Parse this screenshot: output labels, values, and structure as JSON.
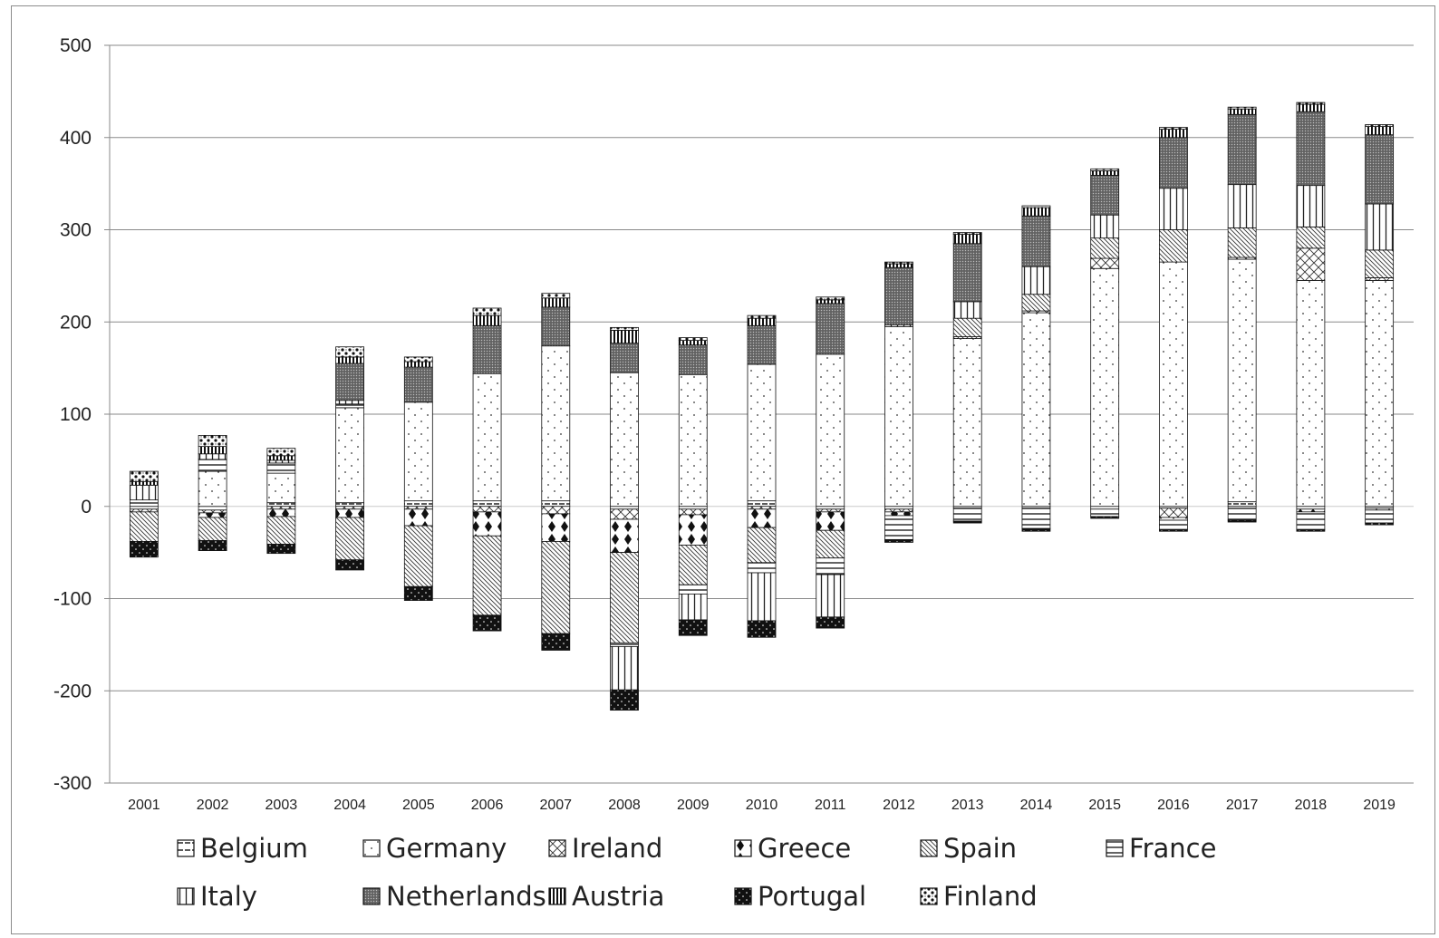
{
  "chart_data": {
    "type": "bar",
    "stacked": true,
    "title": "",
    "xlabel": "",
    "ylabel": "",
    "ylim": [
      -300,
      500
    ],
    "yticks": [
      500,
      400,
      300,
      200,
      100,
      0,
      -100,
      -200,
      -300
    ],
    "grid": true,
    "legend_position": "bottom",
    "categories": [
      "2001",
      "2002",
      "2003",
      "2004",
      "2005",
      "2006",
      "2007",
      "2008",
      "2009",
      "2010",
      "2011",
      "2012",
      "2013",
      "2014",
      "2015",
      "2016",
      "2017",
      "2018",
      "2019"
    ],
    "series": [
      {
        "name": "Belgium",
        "pattern": "belgium",
        "values": [
          -3,
          -4,
          4,
          4,
          6,
          6,
          6,
          -3,
          -3,
          6,
          -3,
          -3,
          -2,
          -2,
          -3,
          -2,
          5,
          -3,
          -2
        ]
      },
      {
        "name": "Germany",
        "pattern": "germany",
        "values": [
          0,
          38,
          32,
          103,
          107,
          138,
          168,
          145,
          143,
          148,
          165,
          195,
          182,
          210,
          258,
          265,
          263,
          245,
          245
        ]
      },
      {
        "name": "Ireland",
        "pattern": "ireland",
        "values": [
          -3,
          -3,
          -3,
          -3,
          -3,
          -6,
          -8,
          -11,
          -6,
          -3,
          -3,
          -3,
          2,
          2,
          11,
          -10,
          2,
          35,
          3
        ]
      },
      {
        "name": "Greece",
        "pattern": "greece",
        "values": [
          0,
          -5,
          -8,
          -9,
          -18,
          -26,
          -30,
          -36,
          -33,
          -20,
          -20,
          -4,
          0,
          0,
          0,
          -3,
          0,
          -3,
          -2
        ]
      },
      {
        "name": "Spain",
        "pattern": "spain",
        "values": [
          -32,
          -25,
          -30,
          -46,
          -66,
          -86,
          -100,
          -98,
          -43,
          -38,
          -30,
          0,
          20,
          18,
          22,
          35,
          32,
          23,
          30
        ]
      },
      {
        "name": "France",
        "pattern": "france",
        "values": [
          7,
          13,
          11,
          4,
          0,
          0,
          0,
          -4,
          -10,
          -11,
          -18,
          -26,
          -14,
          -22,
          -8,
          -10,
          -15,
          -19,
          -14
        ]
      },
      {
        "name": "Italy",
        "pattern": "italy",
        "values": [
          16,
          6,
          3,
          4,
          0,
          0,
          0,
          -47,
          -28,
          -52,
          -46,
          2,
          18,
          30,
          25,
          45,
          47,
          45,
          50
        ]
      },
      {
        "name": "Netherlands",
        "pattern": "netherlands",
        "values": [
          0,
          0,
          0,
          40,
          38,
          52,
          42,
          32,
          32,
          42,
          55,
          62,
          63,
          55,
          43,
          55,
          76,
          80,
          75
        ]
      },
      {
        "name": "Austria",
        "pattern": "austria",
        "values": [
          4,
          8,
          5,
          7,
          6,
          11,
          10,
          14,
          5,
          8,
          4,
          4,
          10,
          9,
          5,
          9,
          6,
          8,
          9
        ]
      },
      {
        "name": "Portugal",
        "pattern": "portugal",
        "values": [
          -17,
          -11,
          -10,
          -11,
          -15,
          -17,
          -18,
          -22,
          -17,
          -18,
          -12,
          -3,
          -2,
          -3,
          -2,
          -2,
          -2,
          -2,
          -2
        ]
      },
      {
        "name": "Finland",
        "pattern": "finland",
        "values": [
          11,
          12,
          8,
          11,
          5,
          8,
          5,
          3,
          3,
          3,
          3,
          2,
          2,
          2,
          2,
          2,
          2,
          2,
          2
        ]
      }
    ]
  }
}
